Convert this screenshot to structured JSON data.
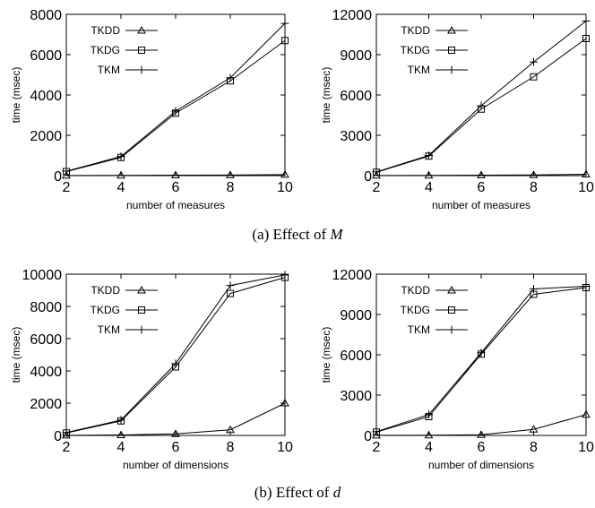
{
  "chart_data": [
    {
      "type": "line",
      "x": [
        2,
        4,
        6,
        8,
        10
      ],
      "xlabel": "number of measures",
      "ylabel": "time (msec)",
      "xlim": [
        2,
        10
      ],
      "ylim": [
        0,
        8000
      ],
      "xticks": [
        2,
        4,
        6,
        8,
        10
      ],
      "yticks": [
        0,
        2000,
        4000,
        6000,
        8000
      ],
      "legend": "top-left",
      "grid": false,
      "series": [
        {
          "name": "TKDD",
          "marker": "triangle",
          "values": [
            5,
            10,
            20,
            30,
            50
          ]
        },
        {
          "name": "TKDG",
          "marker": "square",
          "values": [
            200,
            900,
            3100,
            4700,
            6700
          ]
        },
        {
          "name": "TKM",
          "marker": "plus",
          "values": [
            220,
            950,
            3200,
            4850,
            7550
          ]
        }
      ]
    },
    {
      "type": "line",
      "x": [
        2,
        4,
        6,
        8,
        10
      ],
      "xlabel": "number of measures",
      "ylabel": "time (msec)",
      "xlim": [
        2,
        10
      ],
      "ylim": [
        0,
        12000
      ],
      "xticks": [
        2,
        4,
        6,
        8,
        10
      ],
      "yticks": [
        0,
        3000,
        6000,
        9000,
        12000
      ],
      "legend": "top-left",
      "grid": false,
      "series": [
        {
          "name": "TKDD",
          "marker": "triangle",
          "values": [
            10,
            20,
            30,
            50,
            100
          ]
        },
        {
          "name": "TKDG",
          "marker": "square",
          "values": [
            250,
            1450,
            4950,
            7350,
            10200
          ]
        },
        {
          "name": "TKM",
          "marker": "plus",
          "values": [
            280,
            1500,
            5200,
            8450,
            11500
          ]
        }
      ]
    },
    {
      "type": "line",
      "x": [
        2,
        4,
        6,
        8,
        10
      ],
      "xlabel": "number of dimensions",
      "ylabel": "time (msec)",
      "xlim": [
        2,
        10
      ],
      "ylim": [
        0,
        10000
      ],
      "xticks": [
        2,
        4,
        6,
        8,
        10
      ],
      "yticks": [
        0,
        2000,
        4000,
        6000,
        8000,
        10000
      ],
      "legend": "top-left",
      "grid": false,
      "series": [
        {
          "name": "TKDD",
          "marker": "triangle",
          "values": [
            10,
            30,
            100,
            350,
            2000
          ]
        },
        {
          "name": "TKDG",
          "marker": "square",
          "values": [
            150,
            900,
            4250,
            8800,
            9800
          ]
        },
        {
          "name": "TKM",
          "marker": "plus",
          "values": [
            180,
            950,
            4450,
            9300,
            9950
          ]
        }
      ]
    },
    {
      "type": "line",
      "x": [
        2,
        4,
        6,
        8,
        10
      ],
      "xlabel": "number of dimensions",
      "ylabel": "time (msec)",
      "xlim": [
        2,
        10
      ],
      "ylim": [
        0,
        12000
      ],
      "xticks": [
        2,
        4,
        6,
        8,
        10
      ],
      "yticks": [
        0,
        3000,
        6000,
        9000,
        12000
      ],
      "legend": "top-left",
      "grid": false,
      "series": [
        {
          "name": "TKDD",
          "marker": "triangle",
          "values": [
            10,
            20,
            50,
            450,
            1550
          ]
        },
        {
          "name": "TKDG",
          "marker": "square",
          "values": [
            250,
            1400,
            6050,
            10500,
            11000
          ]
        },
        {
          "name": "TKM",
          "marker": "plus",
          "values": [
            280,
            1550,
            6150,
            10900,
            11100
          ]
        }
      ]
    }
  ],
  "captions": {
    "a_prefix": "(a)",
    "a_text": "Effect of",
    "a_symbol": "M",
    "b_prefix": "(b)",
    "b_text": "Effect of",
    "b_symbol": "d"
  }
}
